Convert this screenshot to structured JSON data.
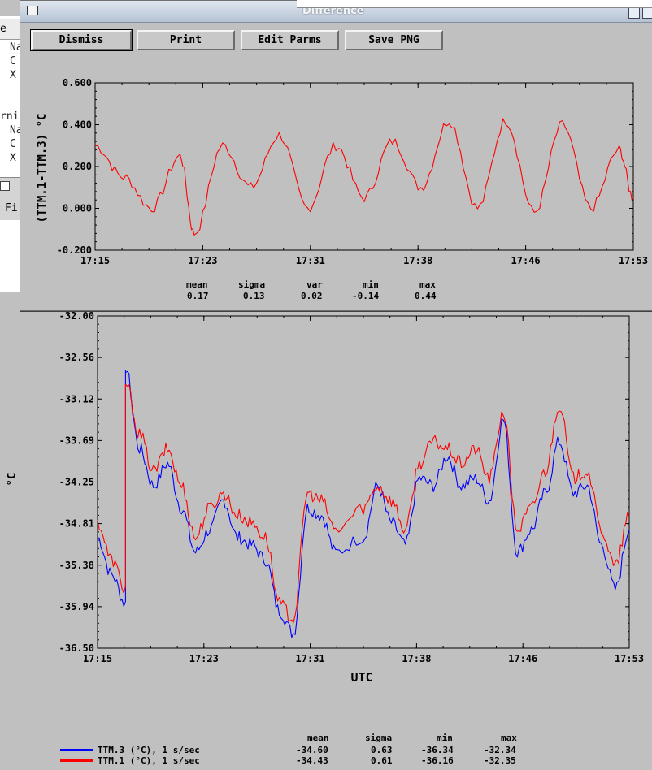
{
  "background": {
    "menu_fragment": "e",
    "menu_fragment2": "I",
    "frag_lines": [
      "Na",
      "C",
      "X",
      "rni",
      "Na",
      "C",
      "X"
    ],
    "file_fragment": "Fi"
  },
  "dialog": {
    "title": "Difference",
    "buttons": {
      "dismiss": "Dismiss",
      "print": "Print",
      "edit_parms": "Edit Parms",
      "save_png": "Save PNG"
    },
    "stats": {
      "headers": [
        "mean",
        "sigma",
        "var",
        "min",
        "max"
      ],
      "values": [
        "0.17",
        "0.13",
        "0.02",
        "-0.14",
        "0.44"
      ]
    }
  },
  "main": {
    "stats_headers": [
      "mean",
      "sigma",
      "min",
      "max"
    ],
    "legend": [
      {
        "label": "TTM.3 (°C), 1 s/sec",
        "color": "#0000ff",
        "mean": "-34.60",
        "sigma": "0.63",
        "min": "-36.34",
        "max": "-32.34"
      },
      {
        "label": "TTM.1 (°C), 1 s/sec",
        "color": "#ff0000",
        "mean": "-34.43",
        "sigma": "0.61",
        "min": "-36.16",
        "max": "-32.35"
      }
    ]
  },
  "chart_data": [
    {
      "type": "line",
      "ylabel": "(TTM.1-TTM.3) °C",
      "xlabel": "",
      "x_ticks": [
        "17:15",
        "17:23",
        "17:31",
        "17:38",
        "17:46",
        "17:53"
      ],
      "y_ticks": [
        "0.600",
        "0.400",
        "0.200",
        "0.000",
        "-0.200"
      ],
      "ylim": [
        -0.2,
        0.6
      ],
      "x_range": [
        "17:15",
        "17:53"
      ],
      "grid": false,
      "series": [
        {
          "color": "#ff0000",
          "x": [
            "17:15",
            "17:17",
            "17:19",
            "17:21",
            "17:22",
            "17:24",
            "17:26",
            "17:28",
            "17:30",
            "17:32",
            "17:34",
            "17:36",
            "17:38",
            "17:40",
            "17:42",
            "17:44",
            "17:46",
            "17:48",
            "17:50",
            "17:52",
            "17:53"
          ],
          "values": [
            0.3,
            0.15,
            0.0,
            0.25,
            -0.12,
            0.3,
            0.1,
            0.35,
            0.0,
            0.3,
            0.05,
            0.32,
            0.1,
            0.42,
            0.0,
            0.42,
            -0.02,
            0.4,
            0.0,
            0.28,
            0.05
          ]
        }
      ]
    },
    {
      "type": "line",
      "ylabel": "°C",
      "xlabel": "UTC",
      "x_ticks": [
        "17:15",
        "17:23",
        "17:31",
        "17:38",
        "17:46",
        "17:53"
      ],
      "y_ticks": [
        "-32.00",
        "-32.56",
        "-33.12",
        "-33.69",
        "-34.25",
        "-34.81",
        "-35.38",
        "-35.94",
        "-36.50"
      ],
      "ylim": [
        -36.5,
        -32.0
      ],
      "x_range": [
        "17:15",
        "17:53"
      ],
      "grid": false,
      "series": [
        {
          "name": "TTM.3 (°C), 1 s/sec",
          "color": "#0000ff",
          "x": [
            "17:15",
            "17:16",
            "17:17",
            "17:17",
            "17:18",
            "17:19",
            "17:20",
            "17:21",
            "17:22",
            "17:23",
            "17:24",
            "17:25",
            "17:26",
            "17:27",
            "17:28",
            "17:29",
            "17:30",
            "17:31",
            "17:32",
            "17:34",
            "17:35",
            "17:36",
            "17:37",
            "17:38",
            "17:39",
            "17:40",
            "17:41",
            "17:42",
            "17:43",
            "17:44",
            "17:45",
            "17:46",
            "17:47",
            "17:48",
            "17:49",
            "17:50",
            "17:51",
            "17:52",
            "17:53"
          ],
          "values": [
            -35.0,
            -35.5,
            -35.9,
            -32.7,
            -33.8,
            -34.3,
            -34.0,
            -34.6,
            -35.2,
            -34.9,
            -34.5,
            -35.0,
            -35.1,
            -35.3,
            -36.0,
            -36.3,
            -34.6,
            -34.7,
            -35.2,
            -35.0,
            -34.3,
            -34.8,
            -35.1,
            -34.2,
            -34.3,
            -33.9,
            -34.3,
            -34.2,
            -34.5,
            -33.4,
            -35.2,
            -34.9,
            -34.4,
            -33.7,
            -34.4,
            -34.3,
            -35.1,
            -35.7,
            -34.9
          ]
        },
        {
          "name": "TTM.1 (°C), 1 s/sec",
          "color": "#ff0000",
          "x": [
            "17:15",
            "17:16",
            "17:17",
            "17:17",
            "17:18",
            "17:19",
            "17:20",
            "17:21",
            "17:22",
            "17:23",
            "17:24",
            "17:25",
            "17:26",
            "17:27",
            "17:28",
            "17:29",
            "17:30",
            "17:31",
            "17:32",
            "17:34",
            "17:35",
            "17:36",
            "17:37",
            "17:38",
            "17:39",
            "17:40",
            "17:41",
            "17:42",
            "17:43",
            "17:44",
            "17:45",
            "17:46",
            "17:47",
            "17:48",
            "17:49",
            "17:50",
            "17:51",
            "17:52",
            "17:53"
          ],
          "values": [
            -34.8,
            -35.3,
            -35.7,
            -32.9,
            -33.6,
            -34.1,
            -33.8,
            -34.3,
            -35.0,
            -34.6,
            -34.4,
            -34.7,
            -34.8,
            -35.0,
            -35.9,
            -36.1,
            -34.4,
            -34.5,
            -34.9,
            -34.6,
            -34.3,
            -34.5,
            -34.9,
            -34.0,
            -33.7,
            -33.8,
            -34.0,
            -33.8,
            -34.2,
            -33.3,
            -34.9,
            -34.6,
            -34.1,
            -33.2,
            -34.2,
            -34.1,
            -34.9,
            -35.4,
            -34.7
          ]
        }
      ]
    }
  ]
}
